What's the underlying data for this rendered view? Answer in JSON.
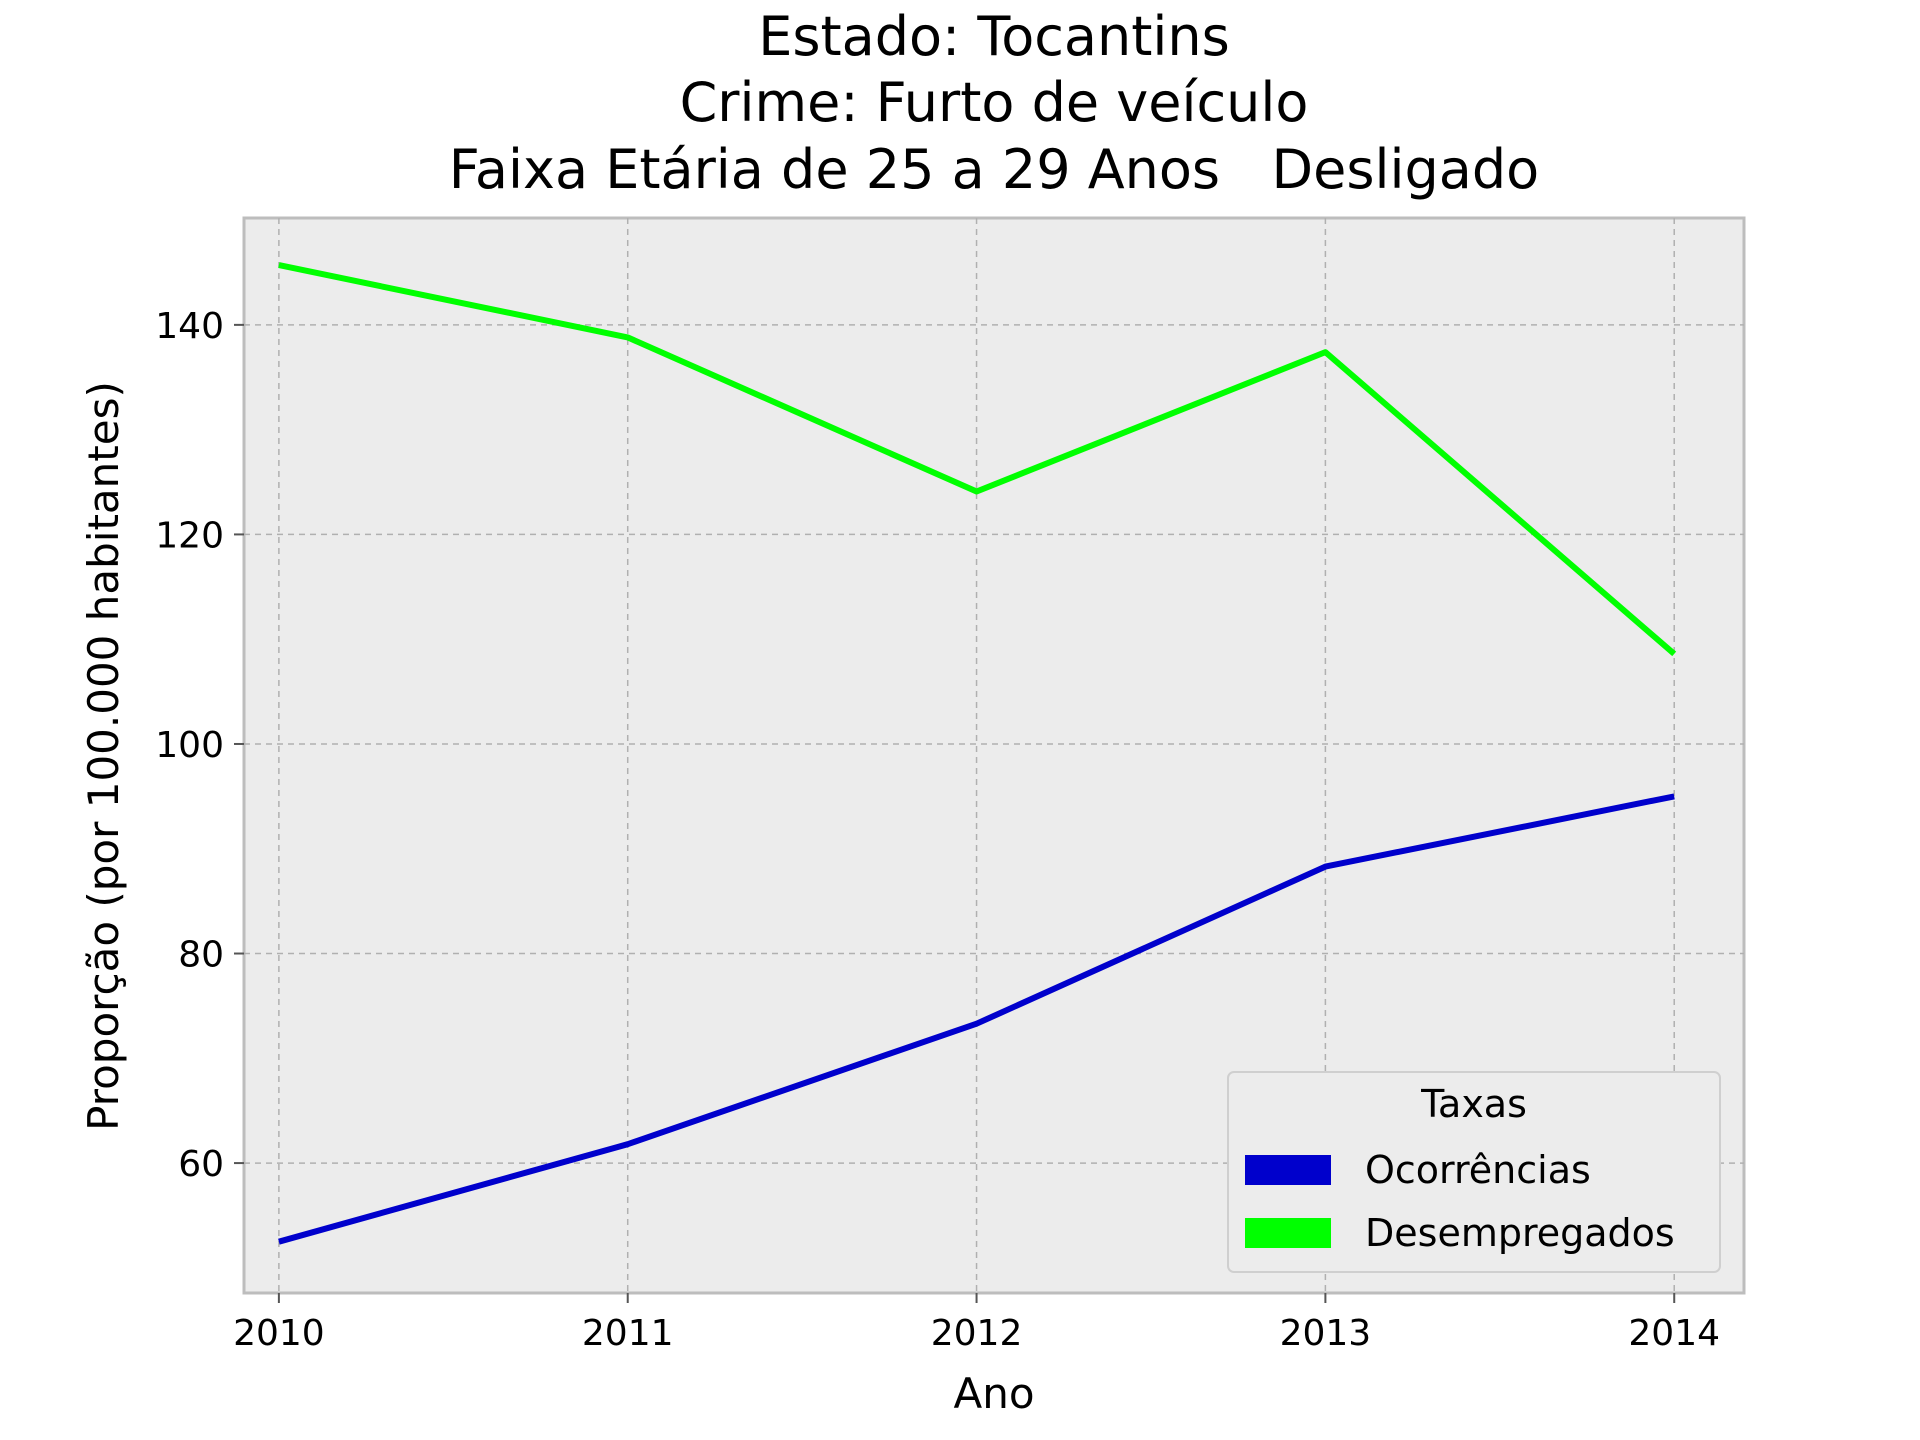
{
  "chart_data": {
    "type": "line",
    "title_lines": [
      "Estado: Tocantins",
      "Crime: Furto de veículo",
      "Faixa Etária de 25 a 29 Anos   Desligado"
    ],
    "xlabel": "Ano",
    "ylabel": "Proporção (por 100.000 habitantes)",
    "x": [
      2010,
      2011,
      2012,
      2013,
      2014
    ],
    "x_tick_labels": [
      "2010",
      "2011",
      "2012",
      "2013",
      "2014"
    ],
    "y_ticks": [
      60,
      80,
      100,
      120,
      140
    ],
    "y_tick_labels": [
      "60",
      "80",
      "100",
      "120",
      "140"
    ],
    "xlim": [
      2009.9,
      2014.2
    ],
    "ylim": [
      47.6,
      150.2
    ],
    "grid": true,
    "legend": {
      "title": "Taxas",
      "placement": "bottom-right"
    },
    "series": [
      {
        "name": "Ocorrências",
        "color": "#0000CC",
        "values": [
          52.5,
          61.8,
          73.3,
          88.3,
          95.0
        ]
      },
      {
        "name": "Desempregados",
        "color": "#00FF00",
        "values": [
          145.7,
          138.8,
          124.1,
          137.4,
          108.6
        ]
      }
    ],
    "colors": {
      "plot_background": "#ECECEC",
      "grid": "#B0B0B0",
      "frame": "#BDBDBD"
    }
  }
}
